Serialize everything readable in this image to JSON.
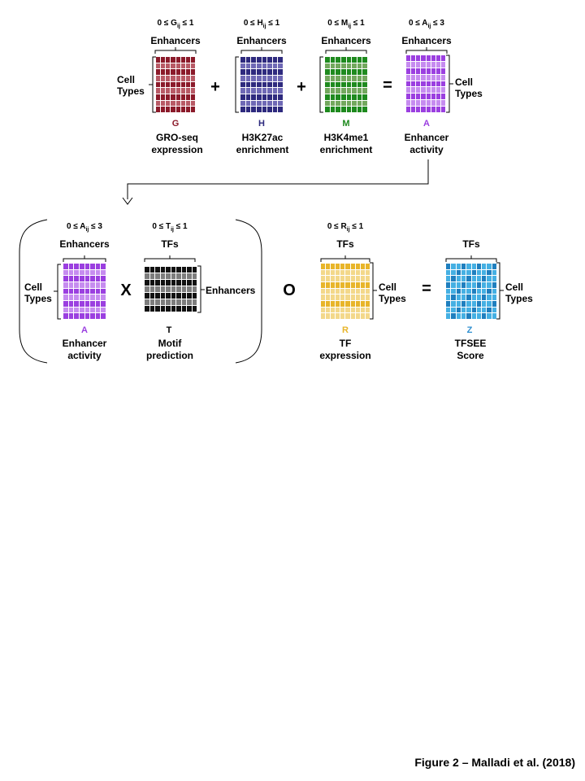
{
  "colors": {
    "G": [
      "#8b1a2a",
      "#b85a66"
    ],
    "H": [
      "#2e2a7e",
      "#6f69b5"
    ],
    "M": [
      "#1e8a1e",
      "#73a85e"
    ],
    "A": [
      "#9b3fe0",
      "#c68cf0"
    ],
    "T": [
      "#111111",
      "#7d7d7d"
    ],
    "R": [
      "#e8b52a",
      "#f3d88a"
    ],
    "Z": [
      "#1f7fbf",
      "#45b0e3"
    ],
    "letter_G": "#8b1a2a",
    "letter_H": "#2e2a7e",
    "letter_M": "#1e8a1e",
    "letter_A": "#9b3fe0",
    "letter_R": "#e8b52a",
    "letter_Z": "#2f8fd0"
  },
  "top": {
    "g_range": "0 ≤ Gij ≤ 1",
    "h_range": "0 ≤ Hij ≤ 1",
    "m_range": "0 ≤ Mij ≤ 1",
    "a_range": "0 ≤ Aij ≤ 3",
    "enhancers": "Enhancers",
    "cell_types_1": "Cell",
    "cell_types_2": "Types",
    "plus": "+",
    "equals": "=",
    "G": "G",
    "H": "H",
    "M": "M",
    "A": "A",
    "g_cap_1": "GRO-seq",
    "g_cap_2": "expression",
    "h_cap_1": "H3K27ac",
    "h_cap_2": "enrichment",
    "m_cap_1": "H3K4me1",
    "m_cap_2": "enrichment",
    "a_cap_1": "Enhancer",
    "a_cap_2": "activity"
  },
  "bottom": {
    "a_range": "0 ≤ Aij ≤ 3",
    "t_range": "0 ≤ Tij ≤ 1",
    "r_range": "0 ≤ Rij ≤ 1",
    "enhancers": "Enhancers",
    "tfs": "TFs",
    "cell_types_1": "Cell",
    "cell_types_2": "Types",
    "times": "X",
    "hadamard": "O",
    "equals": "=",
    "A": "A",
    "T": "T",
    "R": "R",
    "Z": "Z",
    "a_cap_1": "Enhancer",
    "a_cap_2": "activity",
    "t_cap_1": "Motif",
    "t_cap_2": "prediction",
    "r_cap_1": "TF",
    "r_cap_2": "expression",
    "z_cap_1": "TFSEE",
    "z_cap_2": "Score"
  },
  "figure_caption": "Figure 2 – Malladi et al. (2018)"
}
